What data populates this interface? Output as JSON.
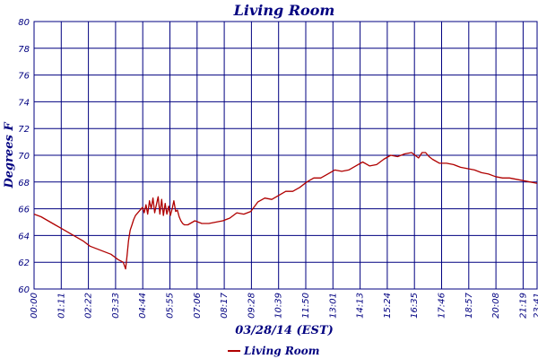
{
  "colors": {
    "background": "#ffffff",
    "grid": "#000080",
    "text": "#000080",
    "series": "#b00000"
  },
  "chart_data": {
    "type": "line",
    "title": "Living Room",
    "xlabel": "03/28/14 (EST)",
    "ylabel": "Degrees F",
    "ylim": [
      60,
      80
    ],
    "yticks": [
      "60",
      "62",
      "64",
      "66",
      "68",
      "70",
      "72",
      "74",
      "76",
      "78",
      "80"
    ],
    "xticks": [
      "00:00",
      "01:11",
      "02:22",
      "03:33",
      "04:44",
      "05:55",
      "07:06",
      "08:17",
      "09:28",
      "10:39",
      "11:50",
      "13:01",
      "14:13",
      "15:24",
      "16:35",
      "17:46",
      "18:57",
      "20:08",
      "21:19",
      "22:30",
      "23:41"
    ],
    "xlim_minutes": [
      0,
      1439
    ],
    "grid": true,
    "legend_position": "bottom-center",
    "series": [
      {
        "name": "Living Room",
        "x_minutes": [
          0,
          20,
          40,
          60,
          80,
          100,
          120,
          140,
          160,
          180,
          200,
          220,
          240,
          255,
          262,
          266,
          270,
          275,
          280,
          285,
          290,
          300,
          310,
          315,
          320,
          325,
          330,
          335,
          340,
          345,
          350,
          355,
          360,
          365,
          370,
          375,
          380,
          385,
          390,
          395,
          400,
          405,
          410,
          415,
          420,
          425,
          430,
          440,
          460,
          480,
          500,
          520,
          540,
          560,
          580,
          600,
          620,
          640,
          660,
          680,
          700,
          720,
          740,
          760,
          780,
          800,
          820,
          840,
          860,
          880,
          900,
          920,
          940,
          960,
          980,
          1000,
          1020,
          1040,
          1060,
          1080,
          1100,
          1110,
          1120,
          1130,
          1140,
          1160,
          1180,
          1200,
          1220,
          1240,
          1260,
          1280,
          1300,
          1320,
          1340,
          1360,
          1380,
          1400,
          1420,
          1439
        ],
        "y": [
          65.6,
          65.4,
          65.1,
          64.8,
          64.5,
          64.2,
          63.9,
          63.6,
          63.2,
          63.0,
          62.8,
          62.6,
          62.2,
          62.0,
          61.5,
          62.5,
          63.6,
          64.4,
          64.8,
          65.2,
          65.5,
          65.8,
          66.1,
          65.7,
          66.3,
          65.6,
          66.6,
          66.0,
          66.8,
          65.7,
          66.3,
          66.9,
          65.6,
          66.7,
          65.5,
          66.4,
          65.6,
          66.2,
          65.5,
          66.0,
          66.6,
          65.8,
          65.9,
          65.4,
          65.1,
          64.9,
          64.8,
          64.8,
          65.1,
          64.9,
          64.9,
          65.0,
          65.1,
          65.3,
          65.7,
          65.6,
          65.8,
          66.5,
          66.8,
          66.7,
          67.0,
          67.3,
          67.3,
          67.6,
          68.0,
          68.3,
          68.3,
          68.6,
          68.9,
          68.8,
          68.9,
          69.2,
          69.5,
          69.2,
          69.3,
          69.7,
          70.0,
          69.9,
          70.1,
          70.2,
          69.8,
          70.2,
          70.2,
          69.9,
          69.7,
          69.4,
          69.4,
          69.3,
          69.1,
          69.0,
          68.9,
          68.7,
          68.6,
          68.4,
          68.3,
          68.3,
          68.2,
          68.1,
          68.0,
          67.9
        ]
      }
    ]
  }
}
